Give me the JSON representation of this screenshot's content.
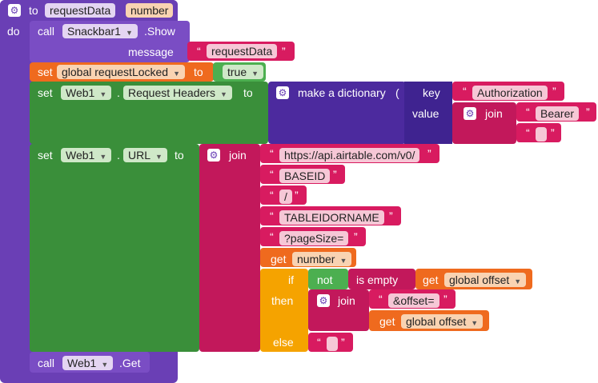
{
  "procedure": {
    "to_label": "to",
    "name": "requestData",
    "param": "number",
    "do_label": "do"
  },
  "call_show": {
    "call_label": "call",
    "component": "Snackbar1",
    "method": ".Show",
    "message_label": "message",
    "message_value": "requestData"
  },
  "set_locked": {
    "set_label": "set",
    "variable": "global requestLocked",
    "to_label": "to",
    "value": "true"
  },
  "set_headers": {
    "set_label": "set",
    "component": "Web1",
    "dot": ".",
    "property": "Request Headers",
    "to_label": "to",
    "dict_label": "make a dictionary",
    "key_label": "key",
    "key_value": "Authorization",
    "value_label": "value",
    "join_label": "join",
    "bearer": "Bearer",
    "space": " "
  },
  "set_url": {
    "set_label": "set",
    "component": "Web1",
    "dot": ".",
    "property": "URL",
    "to_label": "to",
    "join_label": "join",
    "parts": [
      "https://api.airtable.com/v0/",
      "BASEID",
      "/",
      "TABLEIDORNAME",
      "?pageSize="
    ],
    "get_label": "get",
    "get_var": "number",
    "if_label": "if",
    "not_label": "not",
    "is_empty_label": "is empty",
    "offset_var": "global offset",
    "then_label": "then",
    "inner_join_label": "join",
    "offset_param": "&offset=",
    "else_label": "else",
    "else_value": " "
  },
  "call_get": {
    "call_label": "call",
    "component": "Web1",
    "method": ".Get"
  },
  "colors": {
    "procedure": "#6a3fb5",
    "component": "#3a8f3a",
    "variable": "#ef6a1e",
    "text": "#d81b60",
    "control": "#f5a300"
  }
}
